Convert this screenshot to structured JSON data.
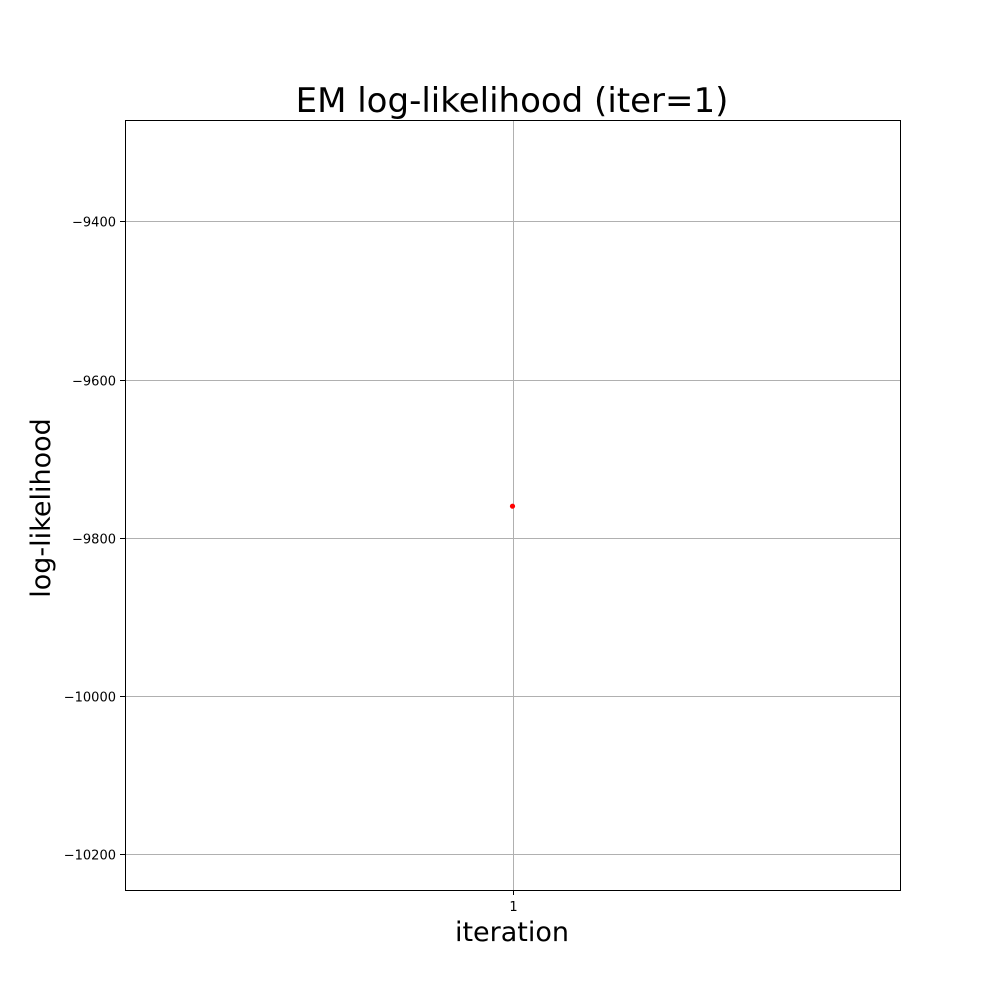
{
  "chart_data": {
    "type": "scatter",
    "title": "EM log-likelihood (iter=1)",
    "xlabel": "iteration",
    "ylabel": "log-likelihood",
    "x_ticks": [
      1
    ],
    "y_ticks": [
      -9400,
      -9600,
      -9800,
      -10000,
      -10200
    ],
    "xlim": [
      0,
      2
    ],
    "ylim": [
      -10245,
      -9272
    ],
    "grid": true,
    "series": [
      {
        "x": [
          1
        ],
        "y": [
          -9760
        ],
        "color": "#ff0000"
      }
    ]
  }
}
